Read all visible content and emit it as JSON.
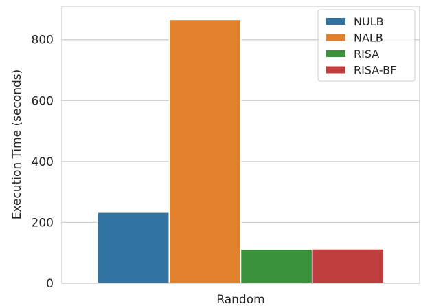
{
  "chart_data": {
    "type": "bar",
    "categories": [
      "Random"
    ],
    "series": [
      {
        "name": "NULB",
        "values": [
          233
        ],
        "color": "#3274a1"
      },
      {
        "name": "NALB",
        "values": [
          866
        ],
        "color": "#e1812c"
      },
      {
        "name": "RISA",
        "values": [
          112
        ],
        "color": "#3a923a"
      },
      {
        "name": "RISA-BF",
        "values": [
          113
        ],
        "color": "#c03d3e"
      }
    ],
    "title": "",
    "xlabel": "",
    "ylabel": "Execution Time (seconds)",
    "ylim": [
      0,
      910
    ],
    "yticks": [
      0,
      200,
      400,
      600,
      800
    ],
    "grid": true,
    "legend": "top-right"
  }
}
